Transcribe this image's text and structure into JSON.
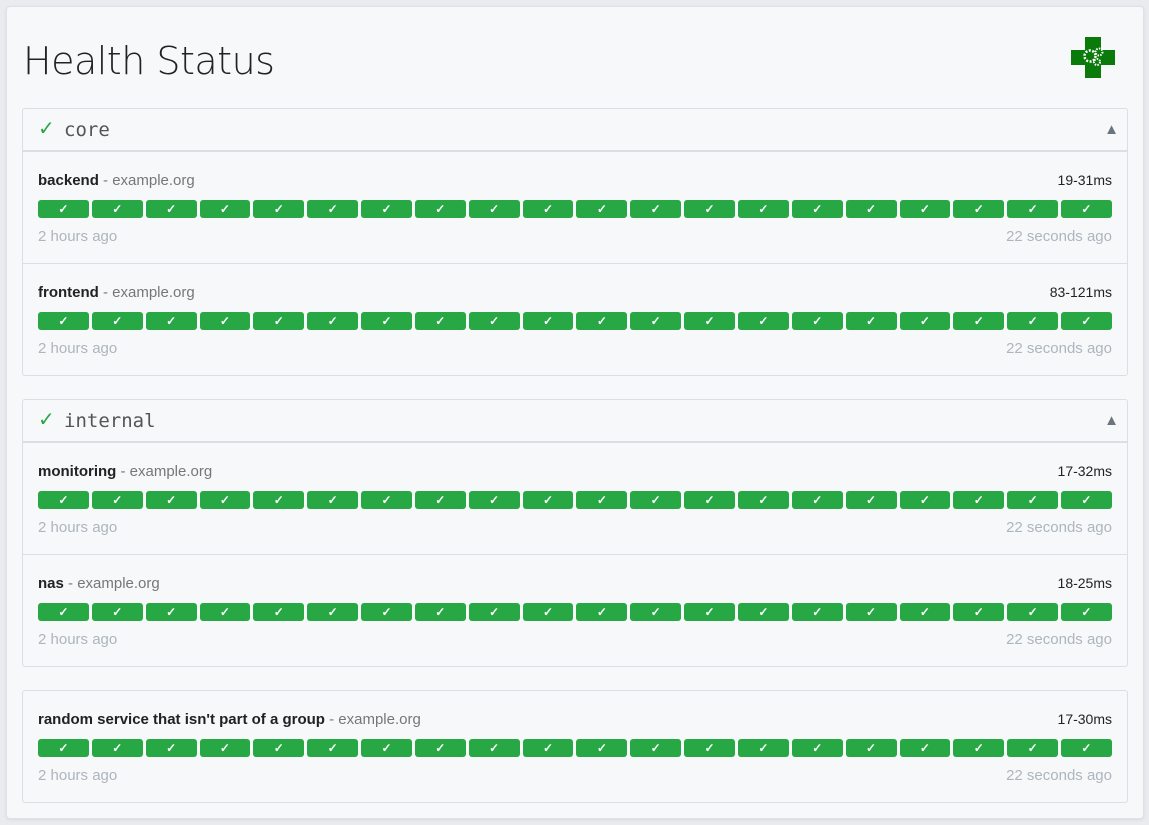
{
  "title": "Health Status",
  "logo_icon": "green-cross-gears-logo",
  "colors": {
    "success": "#28a745",
    "muted": "#adb5bd"
  },
  "groups": [
    {
      "name": "core",
      "status_icon": "✓",
      "toggle_icon": "▲",
      "services": [
        {
          "name": "backend",
          "host": "- example.org",
          "response_time": "19-31ms",
          "oldest": "2 hours ago",
          "newest": "22 seconds ago"
        },
        {
          "name": "frontend",
          "host": "- example.org",
          "response_time": "83-121ms",
          "oldest": "2 hours ago",
          "newest": "22 seconds ago"
        }
      ]
    },
    {
      "name": "internal",
      "status_icon": "✓",
      "toggle_icon": "▲",
      "services": [
        {
          "name": "monitoring",
          "host": "- example.org",
          "response_time": "17-32ms",
          "oldest": "2 hours ago",
          "newest": "22 seconds ago"
        },
        {
          "name": "nas",
          "host": "- example.org",
          "response_time": "18-25ms",
          "oldest": "2 hours ago",
          "newest": "22 seconds ago"
        }
      ]
    }
  ],
  "ungrouped": [
    {
      "name": "random service that isn't part of a group",
      "host": "- example.org",
      "response_time": "17-30ms",
      "oldest": "2 hours ago",
      "newest": "22 seconds ago"
    }
  ],
  "results": [
    "✓",
    "✓",
    "✓",
    "✓",
    "✓",
    "✓",
    "✓",
    "✓",
    "✓",
    "✓",
    "✓",
    "✓",
    "✓",
    "✓",
    "✓",
    "✓",
    "✓",
    "✓",
    "✓",
    "✓"
  ]
}
